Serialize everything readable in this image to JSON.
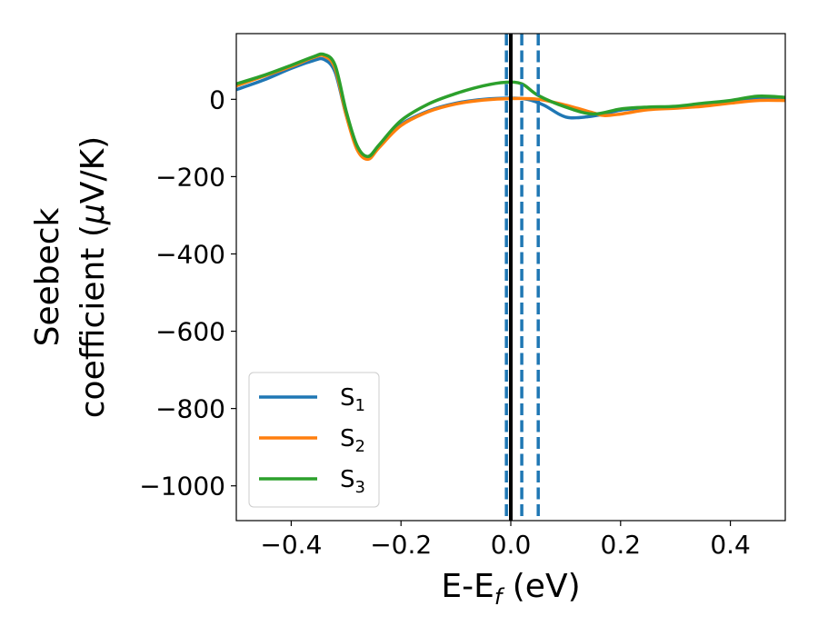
{
  "chart_data": {
    "type": "line",
    "xlabel": "E-E",
    "xlabel_sub": "f",
    "xlabel_unit": " (eV)",
    "ylabel_line1": "Seebeck",
    "ylabel_line2_pre": "coefficient  (",
    "ylabel_mu": "μ",
    "ylabel_line2_post": "V/K)",
    "xlim": [
      -0.5,
      0.5
    ],
    "ylim": [
      -1090,
      170
    ],
    "xticks": [
      -0.4,
      -0.2,
      0.0,
      0.2,
      0.4
    ],
    "xtick_labels": [
      "−0.4",
      "−0.2",
      "0.0",
      "0.2",
      "0.4"
    ],
    "yticks": [
      0,
      -200,
      -400,
      -600,
      -800,
      -1000
    ],
    "ytick_labels": [
      "0",
      "−200",
      "−400",
      "−600",
      "−800",
      "−1000"
    ],
    "legend_position": "lower-left",
    "series": [
      {
        "name": "S",
        "sub": "1",
        "color": "#1f77b4",
        "x": [
          -0.5,
          -0.45,
          -0.4,
          -0.36,
          -0.34,
          -0.32,
          -0.3,
          -0.28,
          -0.26,
          -0.24,
          -0.2,
          -0.15,
          -0.1,
          -0.05,
          0.0,
          0.03,
          0.06,
          0.09,
          0.11,
          0.14,
          0.17,
          0.2,
          0.25,
          0.3,
          0.35,
          0.4,
          0.45,
          0.5
        ],
        "y": [
          25,
          50,
          80,
          100,
          103,
          70,
          -40,
          -125,
          -148,
          -120,
          -65,
          -30,
          -10,
          0,
          3,
          0,
          -15,
          -40,
          -48,
          -45,
          -38,
          -28,
          -22,
          -20,
          -15,
          -5,
          3,
          0
        ]
      },
      {
        "name": "S",
        "sub": "2",
        "color": "#ff7f0e",
        "x": [
          -0.5,
          -0.45,
          -0.4,
          -0.36,
          -0.34,
          -0.32,
          -0.3,
          -0.28,
          -0.26,
          -0.24,
          -0.2,
          -0.15,
          -0.1,
          -0.05,
          0.0,
          0.05,
          0.1,
          0.15,
          0.17,
          0.2,
          0.25,
          0.3,
          0.35,
          0.4,
          0.45,
          0.5
        ],
        "y": [
          35,
          60,
          85,
          108,
          112,
          80,
          -40,
          -130,
          -155,
          -125,
          -68,
          -32,
          -12,
          -2,
          2,
          0,
          -15,
          -35,
          -42,
          -38,
          -27,
          -23,
          -18,
          -10,
          -3,
          -3
        ]
      },
      {
        "name": "S",
        "sub": "3",
        "color": "#2ca02c",
        "x": [
          -0.5,
          -0.45,
          -0.4,
          -0.36,
          -0.34,
          -0.32,
          -0.3,
          -0.28,
          -0.26,
          -0.24,
          -0.2,
          -0.15,
          -0.1,
          -0.05,
          -0.01,
          0.02,
          0.05,
          0.1,
          0.15,
          0.2,
          0.25,
          0.3,
          0.35,
          0.4,
          0.45,
          0.5
        ],
        "y": [
          40,
          62,
          88,
          110,
          116,
          88,
          -30,
          -120,
          -148,
          -118,
          -55,
          -12,
          15,
          35,
          44,
          40,
          10,
          -20,
          -38,
          -25,
          -20,
          -18,
          -10,
          -3,
          8,
          5
        ]
      }
    ],
    "vlines": [
      {
        "x": -0.008,
        "color": "#1f77b4",
        "style": "dashed"
      },
      {
        "x": 0.0,
        "color": "#000000",
        "style": "solid"
      },
      {
        "x": 0.02,
        "color": "#1f77b4",
        "style": "dashed"
      },
      {
        "x": 0.05,
        "color": "#1f77b4",
        "style": "dashed"
      }
    ]
  }
}
